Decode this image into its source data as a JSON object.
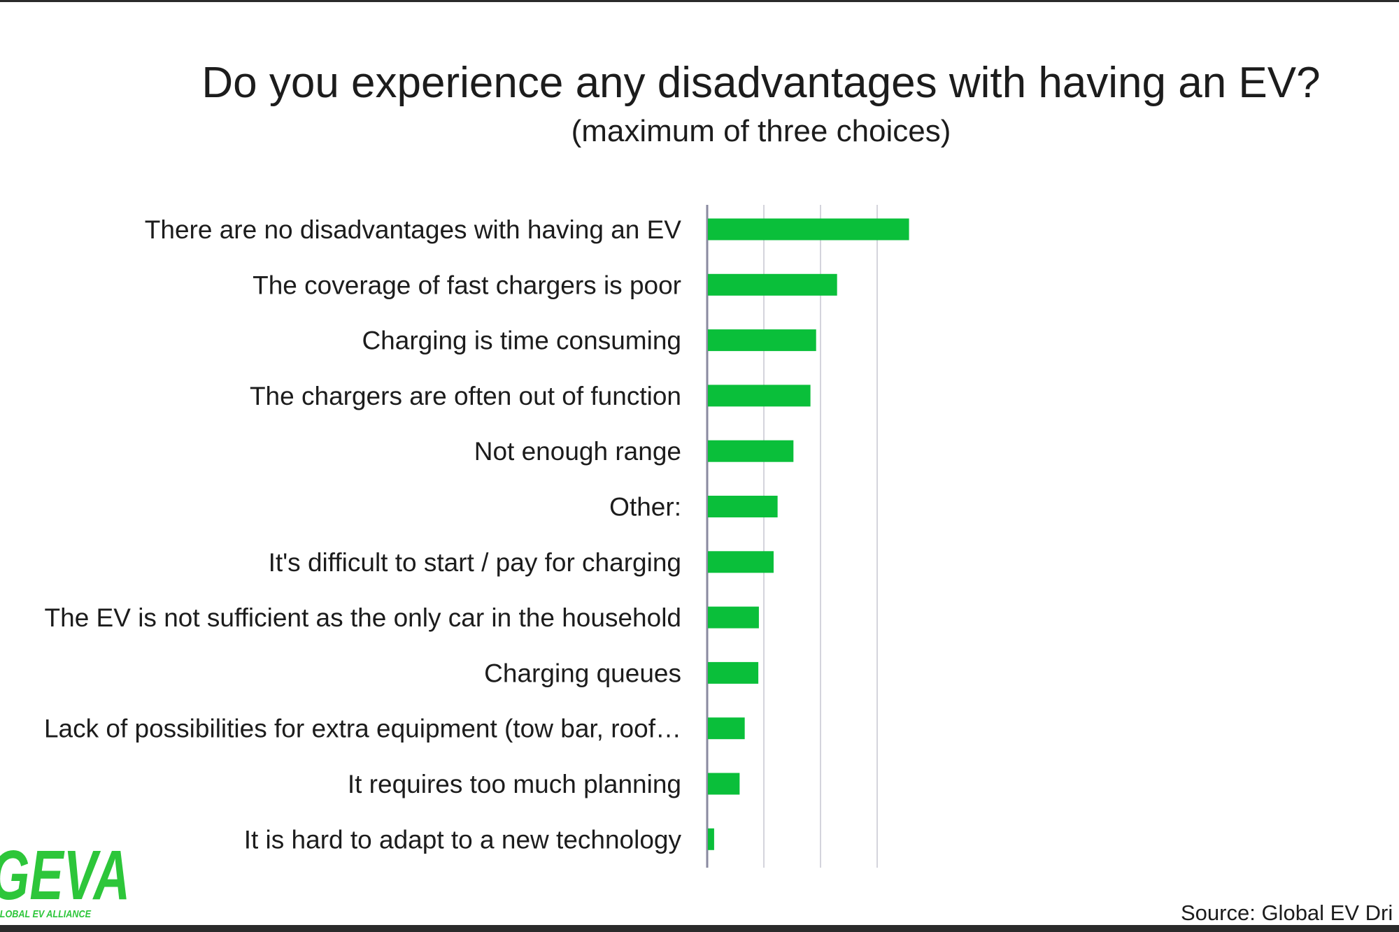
{
  "title": "Do you experience any disadvantages with having an EV?",
  "subtitle": "(maximum of three choices)",
  "source": "Source: Global EV Dri",
  "logo": {
    "wordmark": "GEVA",
    "tagline": "GLOBAL EV ALLIANCE",
    "color": "#2dc63a"
  },
  "colors": {
    "bar": "#0abf3a",
    "grid": "#d4d4dc",
    "axis": "#8a8aa0"
  },
  "chart_data": {
    "type": "bar",
    "orientation": "horizontal",
    "categories": [
      "There are no disadvantages with having an EV",
      "The coverage of fast chargers is poor",
      "Charging is time consuming",
      "The chargers are often out of function",
      "Not enough range",
      "Other:",
      "It's difficult to start / pay for charging",
      "The EV is not sufficient as the only car in the household",
      "Charging queues",
      "Lack of possibilities for extra equipment (tow bar, roof…",
      "It requires too much planning",
      "It is hard to adapt to a new technology"
    ],
    "values": [
      35.5,
      22.8,
      19.1,
      18.1,
      15.1,
      12.3,
      11.6,
      9.0,
      8.9,
      6.5,
      5.6,
      1.1
    ],
    "xlim": [
      0,
      35
    ],
    "grid": true,
    "legend": "none"
  }
}
